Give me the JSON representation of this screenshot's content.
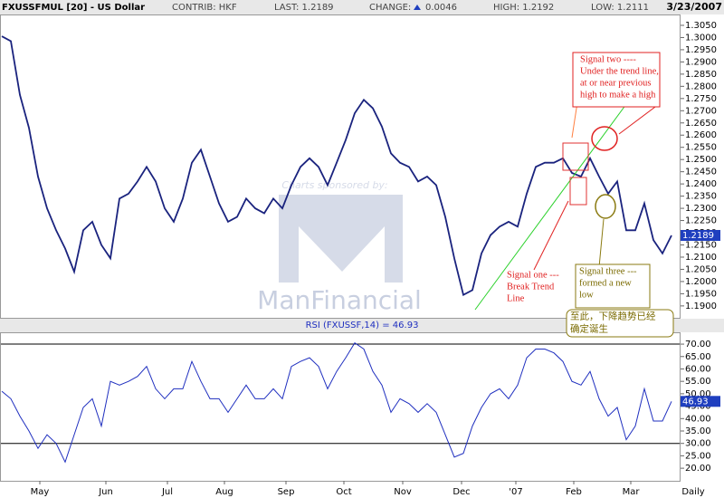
{
  "header": {
    "symbol": "FXUSSFMUL [20] - US Dollar",
    "contrib": "CONTRIB: HKF",
    "last": "LAST: 1.2189",
    "change_label": "CHANGE:",
    "change": "0.0046",
    "high": "HIGH: 1.2192",
    "low": "LOW: 1.2111",
    "date": "3/23/2007"
  },
  "watermark": {
    "sponsor": "Charts sponsored by:",
    "brand": "ManFinancial"
  },
  "annotations": {
    "signal_two": [
      "Signal two ----",
      "Under the trend line,",
      "at or near previous",
      "high to make a high"
    ],
    "signal_one": [
      "Signal one ---",
      "Break Trend",
      "Line"
    ],
    "signal_three": [
      "Signal three ---",
      "formed a new",
      "low"
    ],
    "conclusion": [
      "至此，下降趋势已经",
      "确定诞生"
    ]
  },
  "chart_data": [
    {
      "type": "line",
      "x": [
        0,
        1,
        2,
        3,
        4,
        5,
        6,
        7,
        8,
        9,
        10,
        11,
        12,
        13,
        14,
        15,
        16,
        17,
        18,
        19,
        20,
        21,
        22,
        23,
        24,
        25,
        26,
        27,
        28,
        29,
        30,
        31,
        32,
        33,
        34,
        35,
        36,
        37,
        38,
        39,
        40,
        41,
        42,
        43,
        44,
        45,
        46,
        47,
        48,
        49,
        50,
        51,
        52,
        53,
        54,
        55,
        56,
        57,
        58,
        59,
        60,
        61,
        62,
        63,
        64,
        65,
        66,
        67,
        68,
        69,
        70,
        71,
        72,
        73,
        74
      ],
      "series": [
        {
          "color": "#1a237e",
          "values": [
            1.3005,
            1.2985,
            1.2765,
            1.263,
            1.243,
            1.23,
            1.221,
            1.2135,
            1.204,
            1.221,
            1.2245,
            1.215,
            1.2095,
            1.234,
            1.236,
            1.241,
            1.247,
            1.241,
            1.23,
            1.2245,
            1.234,
            1.2487,
            1.254,
            1.243,
            1.232,
            1.2245,
            1.2265,
            1.234,
            1.23,
            1.228,
            1.234,
            1.23,
            1.2395,
            1.247,
            1.2505,
            1.247,
            1.2395,
            1.2487,
            1.258,
            1.269,
            1.2745,
            1.271,
            1.2635,
            1.2525,
            1.2487,
            1.247,
            1.241,
            1.243,
            1.2395,
            1.2265,
            1.2095,
            1.1945,
            1.1965,
            1.2115,
            1.219,
            1.2225,
            1.2245,
            1.2225,
            1.236,
            1.247,
            1.2487,
            1.2487,
            1.2505,
            1.2445,
            1.243,
            1.2505,
            1.243,
            1.236,
            1.241,
            1.221,
            1.221,
            1.232,
            1.217,
            1.2115,
            1.2189
          ]
        }
      ],
      "xlim": [
        0,
        74.6
      ],
      "ylim": [
        1.1855,
        1.3087
      ],
      "yticks": [
        {
          "value": 1.19,
          "label": "1.1900"
        },
        {
          "value": 1.195,
          "label": "1.1950"
        },
        {
          "value": 1.2,
          "label": "1.2000"
        },
        {
          "value": 1.205,
          "label": "1.2050"
        },
        {
          "value": 1.21,
          "label": "1.2100"
        },
        {
          "value": 1.215,
          "label": "1.2150"
        },
        {
          "value": 1.22,
          "label": "1.2200"
        },
        {
          "value": 1.225,
          "label": "1.2250"
        },
        {
          "value": 1.23,
          "label": "1.2300"
        },
        {
          "value": 1.235,
          "label": "1.2350"
        },
        {
          "value": 1.24,
          "label": "1.2400"
        },
        {
          "value": 1.245,
          "label": "1.2450"
        },
        {
          "value": 1.25,
          "label": "1.2500"
        },
        {
          "value": 1.255,
          "label": "1.2550"
        },
        {
          "value": 1.26,
          "label": "1.2600"
        },
        {
          "value": 1.265,
          "label": "1.2650"
        },
        {
          "value": 1.27,
          "label": "1.2700"
        },
        {
          "value": 1.275,
          "label": "1.2750"
        },
        {
          "value": 1.28,
          "label": "1.2800"
        },
        {
          "value": 1.285,
          "label": "1.2850"
        },
        {
          "value": 1.29,
          "label": "1.2900"
        },
        {
          "value": 1.295,
          "label": "1.2950"
        },
        {
          "value": 1.3,
          "label": "1.3000"
        },
        {
          "value": 1.305,
          "label": "1.3050"
        }
      ]
    },
    {
      "type": "line",
      "title": "RSI (FXUSSF,14) = 46.93",
      "x": [
        0,
        1,
        2,
        3,
        4,
        5,
        6,
        7,
        8,
        9,
        10,
        11,
        12,
        13,
        14,
        15,
        16,
        17,
        18,
        19,
        20,
        21,
        22,
        23,
        24,
        25,
        26,
        27,
        28,
        29,
        30,
        31,
        32,
        33,
        34,
        35,
        36,
        37,
        38,
        39,
        40,
        41,
        42,
        43,
        44,
        45,
        46,
        47,
        48,
        49,
        50,
        51,
        52,
        53,
        54,
        55,
        56,
        57,
        58,
        59,
        60,
        61,
        62,
        63,
        64,
        65,
        66,
        67,
        68,
        69,
        70,
        71,
        72,
        73,
        74
      ],
      "series": [
        {
          "color": "#1f2fbf",
          "values": [
            51,
            48,
            41,
            35,
            28,
            33.5,
            30,
            22.5,
            33.5,
            44.5,
            48,
            37,
            55,
            53.5,
            55,
            57,
            61,
            52,
            48,
            52,
            52,
            63,
            55,
            48,
            48,
            42.5,
            48,
            53.5,
            48,
            48,
            52,
            48,
            61,
            63,
            64.5,
            61,
            52,
            59,
            64.5,
            70.5,
            68,
            59,
            53.5,
            42.5,
            48,
            46,
            42.5,
            46,
            42.5,
            33.5,
            24.5,
            26,
            37,
            44.5,
            50,
            52,
            48,
            53.5,
            64.5,
            68,
            68,
            66.5,
            63,
            55,
            53.5,
            59,
            48,
            41,
            44.5,
            31.5,
            37,
            52,
            39,
            39,
            46.93
          ]
        }
      ],
      "hlines": [
        30,
        70
      ],
      "xlim": [
        0,
        74.6
      ],
      "ylim": [
        15.3,
        74.4
      ],
      "yticks": [
        {
          "value": 20,
          "label": "20.00"
        },
        {
          "value": 25,
          "label": "25.00"
        },
        {
          "value": 30,
          "label": "30.00"
        },
        {
          "value": 35,
          "label": "35.00"
        },
        {
          "value": 40,
          "label": "40.00"
        },
        {
          "value": 45,
          "label": "45.00"
        },
        {
          "value": 50,
          "label": "50.00"
        },
        {
          "value": 55,
          "label": "55.00"
        },
        {
          "value": 60,
          "label": "60.00"
        },
        {
          "value": 65,
          "label": "65.00"
        },
        {
          "value": 70,
          "label": "70.00"
        }
      ],
      "xticks": [
        {
          "value": 4.2,
          "label": "May"
        },
        {
          "value": 11.5,
          "label": "Jun"
        },
        {
          "value": 18.3,
          "label": "Jul"
        },
        {
          "value": 24.6,
          "label": "Aug"
        },
        {
          "value": 31.4,
          "label": "Sep"
        },
        {
          "value": 37.8,
          "label": "Oct"
        },
        {
          "value": 44.3,
          "label": "Nov"
        },
        {
          "value": 50.8,
          "label": "Dec"
        },
        {
          "value": 56.8,
          "label": "'07"
        },
        {
          "value": 63.2,
          "label": "Feb"
        },
        {
          "value": 69.5,
          "label": "Mar"
        }
      ],
      "period_label": "Daily"
    }
  ]
}
